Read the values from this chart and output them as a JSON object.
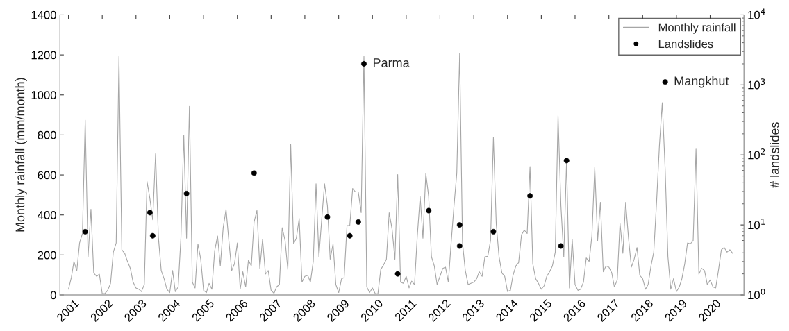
{
  "chart_data": {
    "type": "line",
    "ylabel": "Monthly rainfall (mm/month)",
    "y2label": "# landslides",
    "xlim": [
      "2000-10",
      "2021-01"
    ],
    "xticks": [
      {
        "value": "2001",
        "label": "2001"
      },
      {
        "value": "2002",
        "label": "2002"
      },
      {
        "value": "2003",
        "label": "2003"
      },
      {
        "value": "2004",
        "label": "2004"
      },
      {
        "value": "2005",
        "label": "2005"
      },
      {
        "value": "2006",
        "label": "2006"
      },
      {
        "value": "2007",
        "label": "2007"
      },
      {
        "value": "2008",
        "label": "2008"
      },
      {
        "value": "2009",
        "label": "2009"
      },
      {
        "value": "2010",
        "label": "2010"
      },
      {
        "value": "2011",
        "label": "2011"
      },
      {
        "value": "2012",
        "label": "2012"
      },
      {
        "value": "2013",
        "label": "2013"
      },
      {
        "value": "2014",
        "label": "2014"
      },
      {
        "value": "2015",
        "label": "2015"
      },
      {
        "value": "2016",
        "label": "2016"
      },
      {
        "value": "2017",
        "label": "2017"
      },
      {
        "value": "2018",
        "label": "2018"
      },
      {
        "value": "2019",
        "label": "2019"
      },
      {
        "value": "2020",
        "label": "2020"
      }
    ],
    "ylim": [
      0,
      1400
    ],
    "yticks": [
      0,
      200,
      400,
      600,
      800,
      1000,
      1200,
      1400
    ],
    "y2lim": [
      1,
      10000
    ],
    "y2ticks": [
      {
        "value": 1,
        "label": "10$^{0}$"
      },
      {
        "value": 10,
        "label": "10$^{1}$"
      },
      {
        "value": 100,
        "label": "10$^{2}$"
      },
      {
        "value": 1000,
        "label": "10$^{3}$"
      },
      {
        "value": 10000,
        "label": "10$^{4}$"
      }
    ],
    "log": "y2",
    "grid": false,
    "legend": "top right",
    "series": [
      {
        "name": "Monthly rainfall",
        "color": "#a6a6a6",
        "line_style": "solid",
        "marker": "none",
        "x": [
          "2001-01",
          "2001-02",
          "2001-03",
          "2001-04",
          "2001-05",
          "2001-06",
          "2001-07",
          "2001-08",
          "2001-09",
          "2001-10",
          "2001-11",
          "2001-12",
          "2002-01",
          "2002-02",
          "2002-03",
          "2002-04",
          "2002-05",
          "2002-06",
          "2002-07",
          "2002-08",
          "2002-09",
          "2002-10",
          "2002-11",
          "2002-12",
          "2003-01",
          "2003-02",
          "2003-03",
          "2003-04",
          "2003-05",
          "2003-06",
          "2003-07",
          "2003-08",
          "2003-09",
          "2003-10",
          "2003-11",
          "2003-12",
          "2004-01",
          "2004-02",
          "2004-03",
          "2004-04",
          "2004-05",
          "2004-06",
          "2004-07",
          "2004-08",
          "2004-09",
          "2004-10",
          "2004-11",
          "2004-12",
          "2005-01",
          "2005-02",
          "2005-03",
          "2005-04",
          "2005-05",
          "2005-06",
          "2005-07",
          "2005-08",
          "2005-09",
          "2005-10",
          "2005-11",
          "2005-12",
          "2006-01",
          "2006-02",
          "2006-03",
          "2006-04",
          "2006-05",
          "2006-06",
          "2006-07",
          "2006-08",
          "2006-09",
          "2006-10",
          "2006-11",
          "2006-12",
          "2007-01",
          "2007-02",
          "2007-03",
          "2007-04",
          "2007-05",
          "2007-06",
          "2007-07",
          "2007-08",
          "2007-09",
          "2007-10",
          "2007-11",
          "2007-12",
          "2008-01",
          "2008-02",
          "2008-03",
          "2008-04",
          "2008-05",
          "2008-06",
          "2008-07",
          "2008-08",
          "2008-09",
          "2008-10",
          "2008-11",
          "2008-12",
          "2009-01",
          "2009-02",
          "2009-03",
          "2009-04",
          "2009-05",
          "2009-06",
          "2009-07",
          "2009-08",
          "2009-09",
          "2009-10",
          "2009-11",
          "2009-12",
          "2010-01",
          "2010-02",
          "2010-03",
          "2010-04",
          "2010-05",
          "2010-06",
          "2010-07",
          "2010-08",
          "2010-09",
          "2010-10",
          "2010-11",
          "2010-12",
          "2011-01",
          "2011-02",
          "2011-03",
          "2011-04",
          "2011-05",
          "2011-06",
          "2011-07",
          "2011-08",
          "2011-09",
          "2011-10",
          "2011-11",
          "2011-12",
          "2012-01",
          "2012-02",
          "2012-03",
          "2012-04",
          "2012-05",
          "2012-06",
          "2012-07",
          "2012-08",
          "2012-09",
          "2012-10",
          "2012-11",
          "2012-12",
          "2013-01",
          "2013-02",
          "2013-03",
          "2013-04",
          "2013-05",
          "2013-06",
          "2013-07",
          "2013-08",
          "2013-09",
          "2013-10",
          "2013-11",
          "2013-12",
          "2014-01",
          "2014-02",
          "2014-03",
          "2014-04",
          "2014-05",
          "2014-06",
          "2014-07",
          "2014-08",
          "2014-09",
          "2014-10",
          "2014-11",
          "2014-12",
          "2015-01",
          "2015-02",
          "2015-03",
          "2015-04",
          "2015-05",
          "2015-06",
          "2015-07",
          "2015-08",
          "2015-09",
          "2015-10",
          "2015-11",
          "2015-12",
          "2016-01",
          "2016-02",
          "2016-03",
          "2016-04",
          "2016-05",
          "2016-06",
          "2016-07",
          "2016-08",
          "2016-09",
          "2016-10",
          "2016-11",
          "2016-12",
          "2017-01",
          "2017-02",
          "2017-03",
          "2017-04",
          "2017-05",
          "2017-06",
          "2017-07",
          "2017-08",
          "2017-09",
          "2017-10",
          "2017-11",
          "2017-12",
          "2018-01",
          "2018-02",
          "2018-03",
          "2018-04",
          "2018-05",
          "2018-06",
          "2018-07",
          "2018-08",
          "2018-09",
          "2018-10",
          "2018-11",
          "2018-12",
          "2019-01",
          "2019-02",
          "2019-03",
          "2019-04",
          "2019-05",
          "2019-06",
          "2019-07",
          "2019-08",
          "2019-09",
          "2019-10",
          "2019-11",
          "2019-12",
          "2020-01",
          "2020-02",
          "2020-03",
          "2020-04",
          "2020-05",
          "2020-06",
          "2020-07",
          "2020-08",
          "2020-09"
        ],
        "values": [
          29,
          87,
          168,
          121,
          260,
          307,
          874,
          191,
          428,
          110,
          93,
          104,
          6,
          8,
          23,
          58,
          214,
          260,
          1192,
          226,
          208,
          168,
          133,
          64,
          35,
          29,
          17,
          52,
          567,
          480,
          376,
          706,
          284,
          122,
          81,
          29,
          12,
          122,
          17,
          40,
          284,
          799,
          284,
          943,
          64,
          35,
          255,
          179,
          23,
          12,
          58,
          29,
          220,
          295,
          145,
          336,
          428,
          272,
          122,
          156,
          260,
          29,
          116,
          40,
          174,
          145,
          365,
          422,
          133,
          278,
          104,
          122,
          23,
          8,
          40,
          52,
          336,
          272,
          127,
          752,
          255,
          284,
          382,
          64,
          93,
          98,
          64,
          168,
          556,
          191,
          376,
          556,
          446,
          179,
          255,
          52,
          12,
          81,
          87,
          347,
          347,
          532,
          515,
          515,
          411,
          1192,
          40,
          12,
          35,
          6,
          6,
          127,
          150,
          179,
          411,
          330,
          179,
          602,
          64,
          58,
          93,
          35,
          69,
          52,
          295,
          492,
          284,
          608,
          492,
          191,
          145,
          52,
          93,
          133,
          139,
          64,
          260,
          446,
          608,
          1209,
          260,
          122,
          52,
          58,
          64,
          81,
          116,
          93,
          191,
          193,
          272,
          787,
          353,
          191,
          110,
          93,
          17,
          23,
          98,
          145,
          162,
          301,
          324,
          307,
          642,
          156,
          81,
          58,
          29,
          46,
          93,
          116,
          145,
          214,
          897,
          446,
          191,
          671,
          35,
          278,
          52,
          23,
          29,
          64,
          185,
          168,
          295,
          637,
          272,
          463,
          116,
          145,
          139,
          110,
          40,
          75,
          359,
          208,
          463,
          284,
          139,
          179,
          237,
          98,
          81,
          29,
          52,
          145,
          214,
          469,
          747,
          961,
          631,
          191,
          29,
          81,
          17,
          40,
          81,
          156,
          260,
          255,
          272,
          729,
          104,
          133,
          122,
          52,
          75,
          40,
          35,
          127,
          226,
          237,
          214,
          226,
          208
        ]
      },
      {
        "name": "Landslides",
        "type": "scatter",
        "axis": "y2",
        "color": "#000000",
        "marker": "circle",
        "x": [
          "2001-07",
          "2003-06",
          "2003-07",
          "2004-07",
          "2006-07",
          "2008-09",
          "2009-05",
          "2009-08",
          "2009-10",
          "2010-10",
          "2011-09",
          "2012-08",
          "2012-08",
          "2013-08",
          "2014-09",
          "2015-08",
          "2015-10",
          "2018-09"
        ],
        "values": [
          8,
          15,
          7,
          28,
          55,
          13,
          7,
          11,
          2000,
          2,
          16,
          10,
          5,
          8,
          26,
          5,
          83,
          1100
        ],
        "value_labels": [
          null,
          null,
          null,
          null,
          null,
          null,
          null,
          null,
          "Parma",
          null,
          null,
          null,
          null,
          null,
          null,
          null,
          null,
          "Mangkhut"
        ]
      }
    ]
  }
}
